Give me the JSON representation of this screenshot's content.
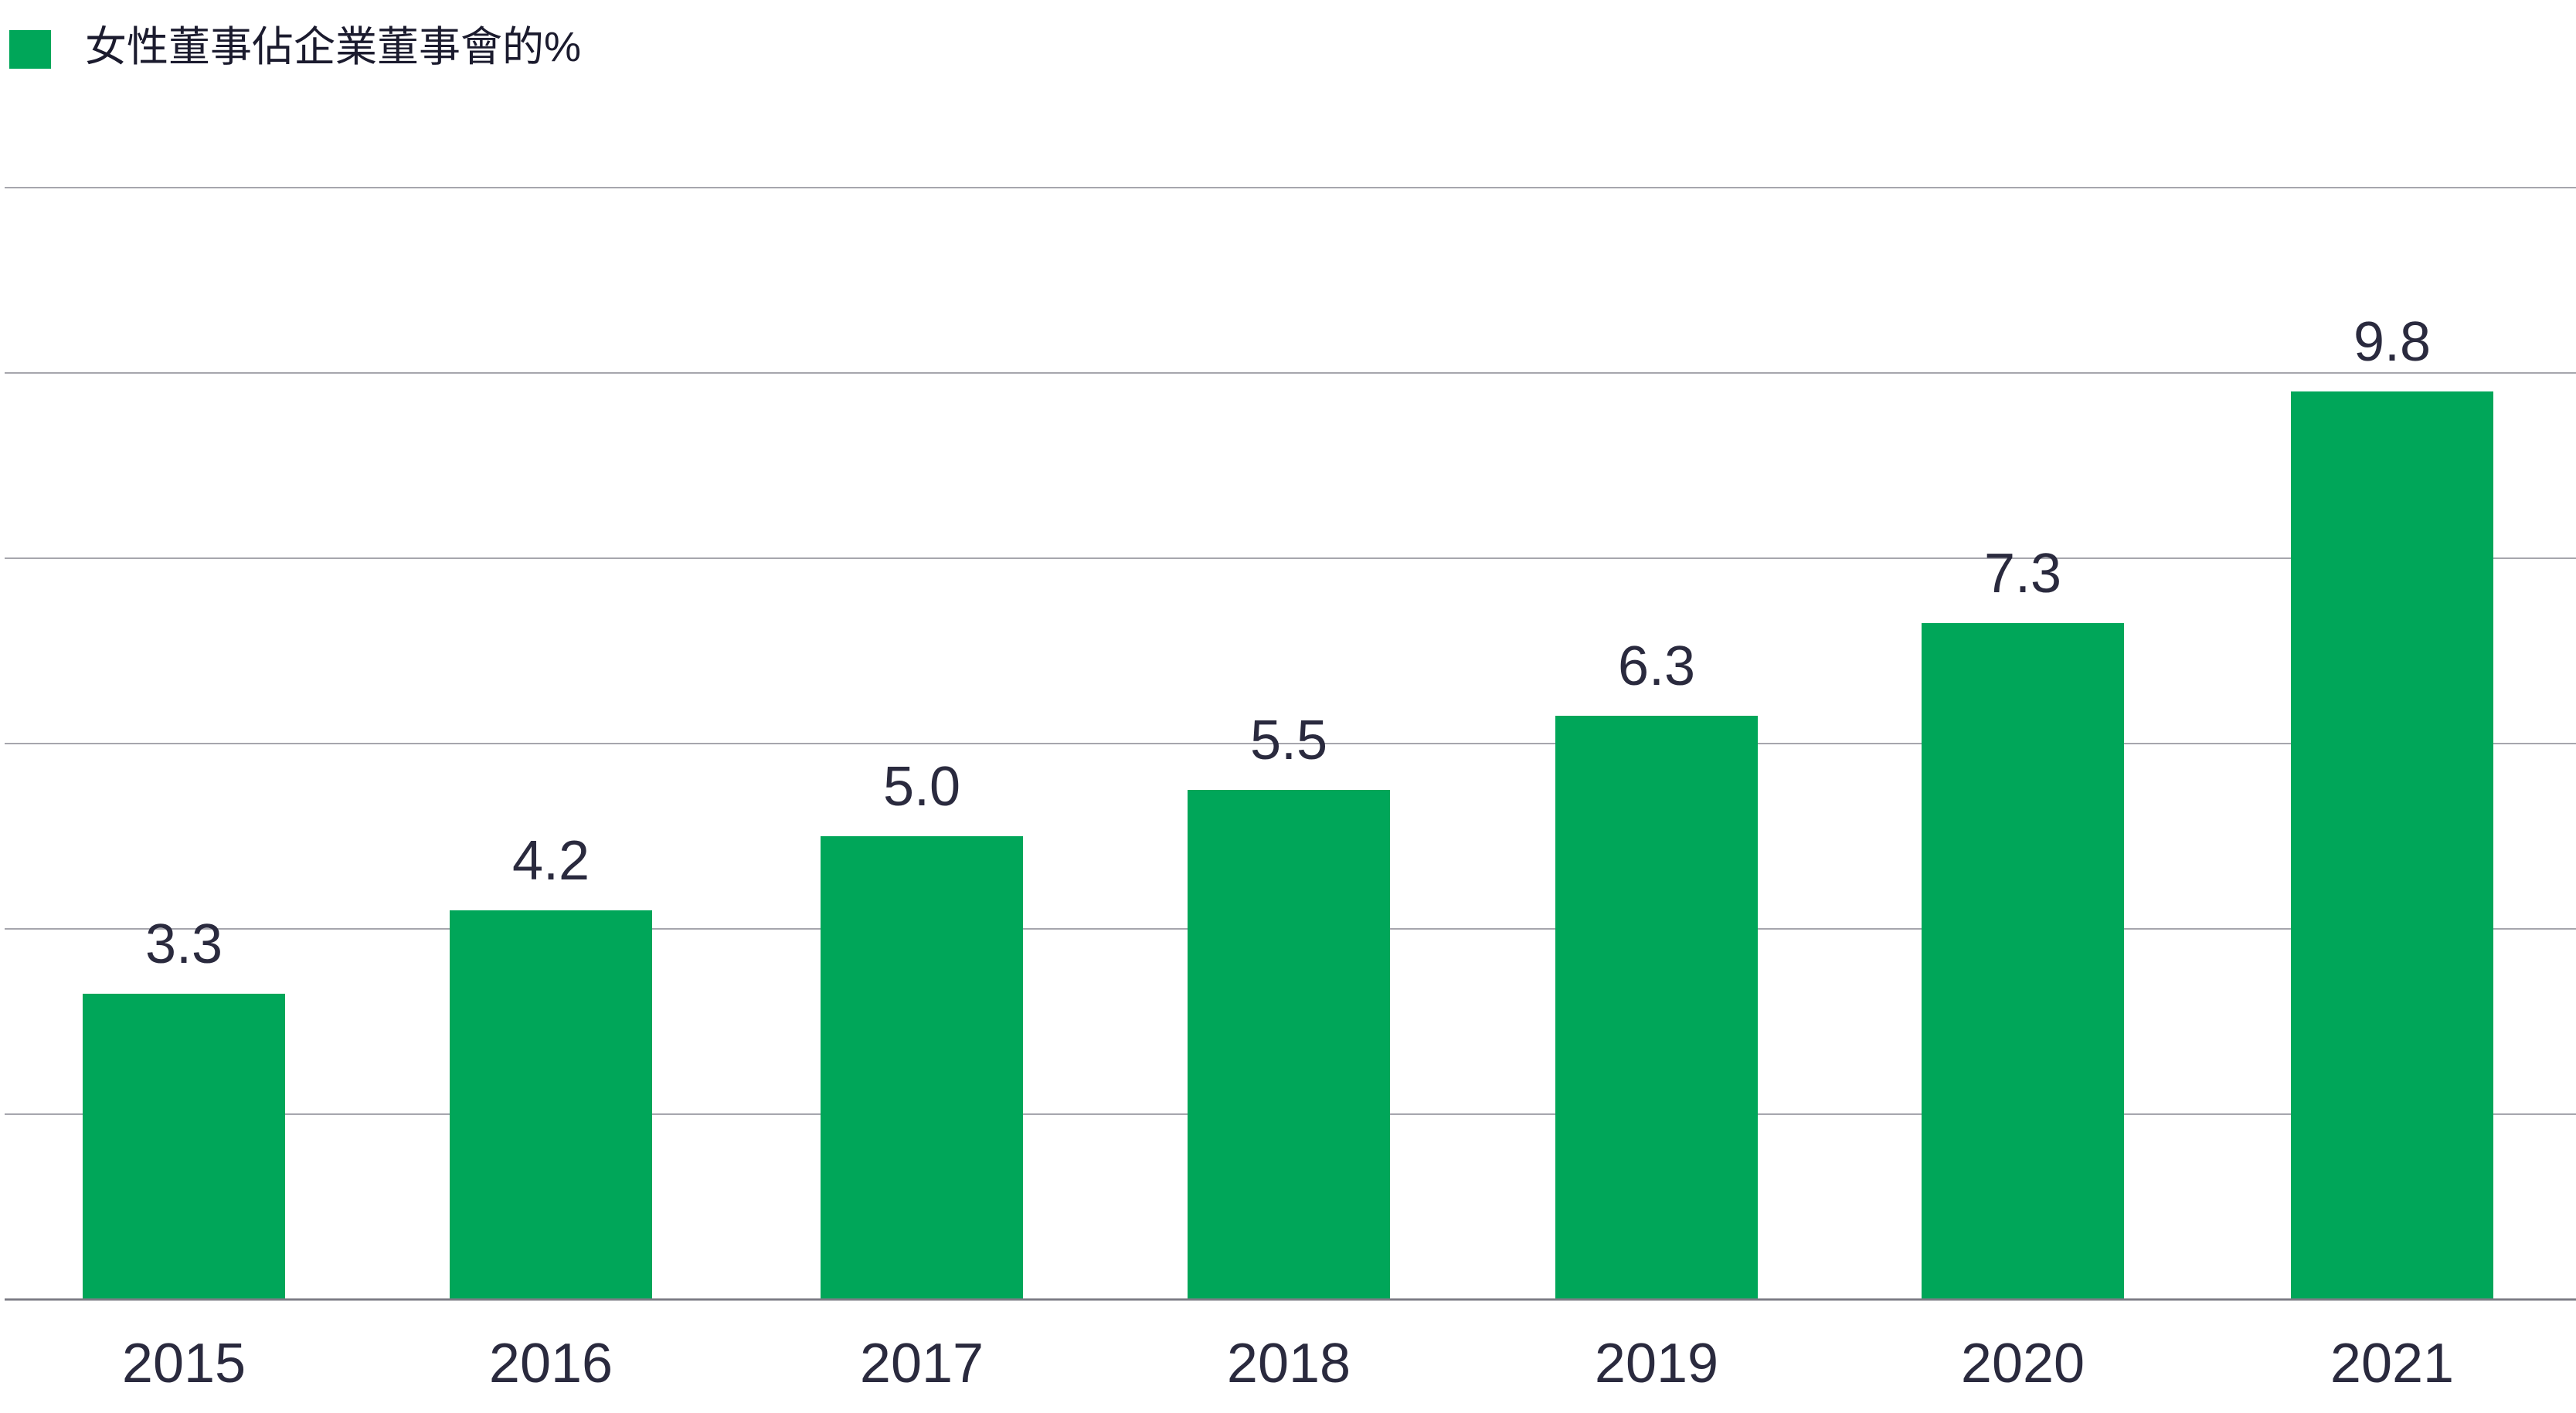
{
  "chart_data": {
    "type": "bar",
    "categories": [
      "2015",
      "2016",
      "2017",
      "2018",
      "2019",
      "2020",
      "2021"
    ],
    "series": [
      {
        "name": "女性董事佔企業董事會的%",
        "values": [
          3.3,
          4.2,
          5.0,
          5.5,
          6.3,
          7.3,
          9.8
        ],
        "labels": [
          "3.3",
          "4.2",
          "5.0",
          "5.5",
          "6.3",
          "7.3",
          "9.8"
        ],
        "color": "#00a659"
      }
    ],
    "title": "",
    "xlabel": "",
    "ylabel": "",
    "ylim": [
      0,
      12
    ],
    "y_gridlines": [
      0,
      2,
      4,
      6,
      8,
      10,
      12
    ],
    "y_tick_labels_shown": false,
    "grid": true,
    "legend": "top-left",
    "colors": {
      "bar": "#00a659",
      "gridline": "#a6a6ad",
      "axis": "#7d7d86",
      "text": "#2a2a3e"
    }
  }
}
